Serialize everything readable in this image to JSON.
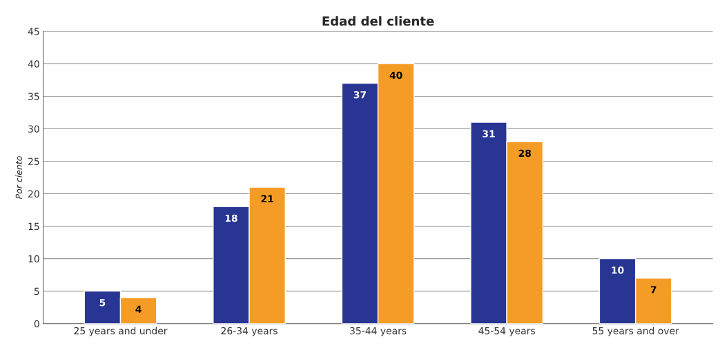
{
  "chart_data": {
    "type": "bar",
    "title": "Edad del cliente",
    "ylabel": "Por ciento",
    "categories": [
      "25 years and under",
      "26-34 years",
      "35-44 years",
      "45-54 years",
      "55 years and over"
    ],
    "series": [
      {
        "color": "#283593",
        "values": [
          5,
          18,
          37,
          31,
          10
        ]
      },
      {
        "color": "#f59c26",
        "values": [
          4,
          21,
          40,
          28,
          7
        ]
      }
    ],
    "ylim": [
      0,
      45
    ],
    "yticks": [
      0,
      5,
      10,
      15,
      20,
      25,
      30,
      35,
      40,
      45
    ],
    "grid": "y",
    "data_labels": true
  }
}
